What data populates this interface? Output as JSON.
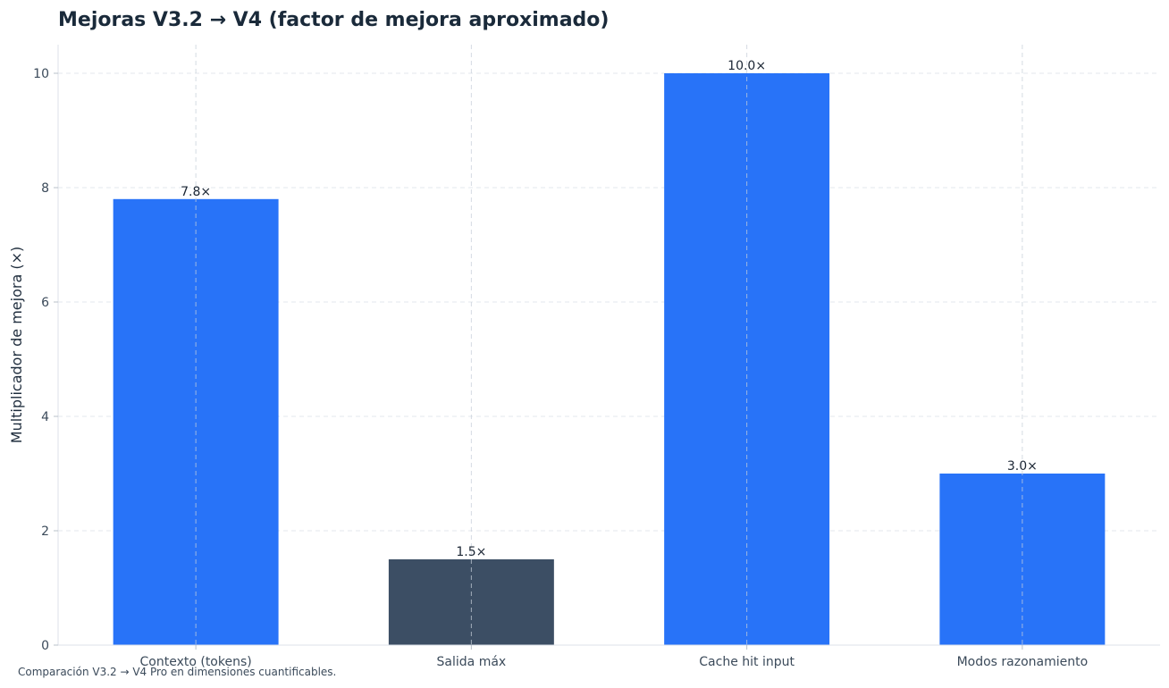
{
  "chart_data": {
    "type": "bar",
    "title": "Mejoras V3.2 → V4 (factor de mejora aproximado)",
    "ylabel": "Multiplicador de mejora (×)",
    "xlabel": "",
    "categories": [
      "Contexto (tokens)",
      "Salida máx",
      "Cache hit input",
      "Modos razonamiento"
    ],
    "values": [
      7.8,
      1.5,
      10.0,
      3.0
    ],
    "value_labels": [
      "7.8×",
      "1.5×",
      "10.0×",
      "3.0×"
    ],
    "bar_colors": [
      "#2873f8",
      "#3c4e64",
      "#2873f8",
      "#2873f8"
    ],
    "ylim": [
      0,
      10.5
    ],
    "yticks": [
      0,
      2,
      4,
      6,
      8,
      10
    ],
    "grid": true,
    "legend": "none"
  },
  "footnote": "Comparación V3.2 → V4 Pro en dimensiones cuantificables."
}
